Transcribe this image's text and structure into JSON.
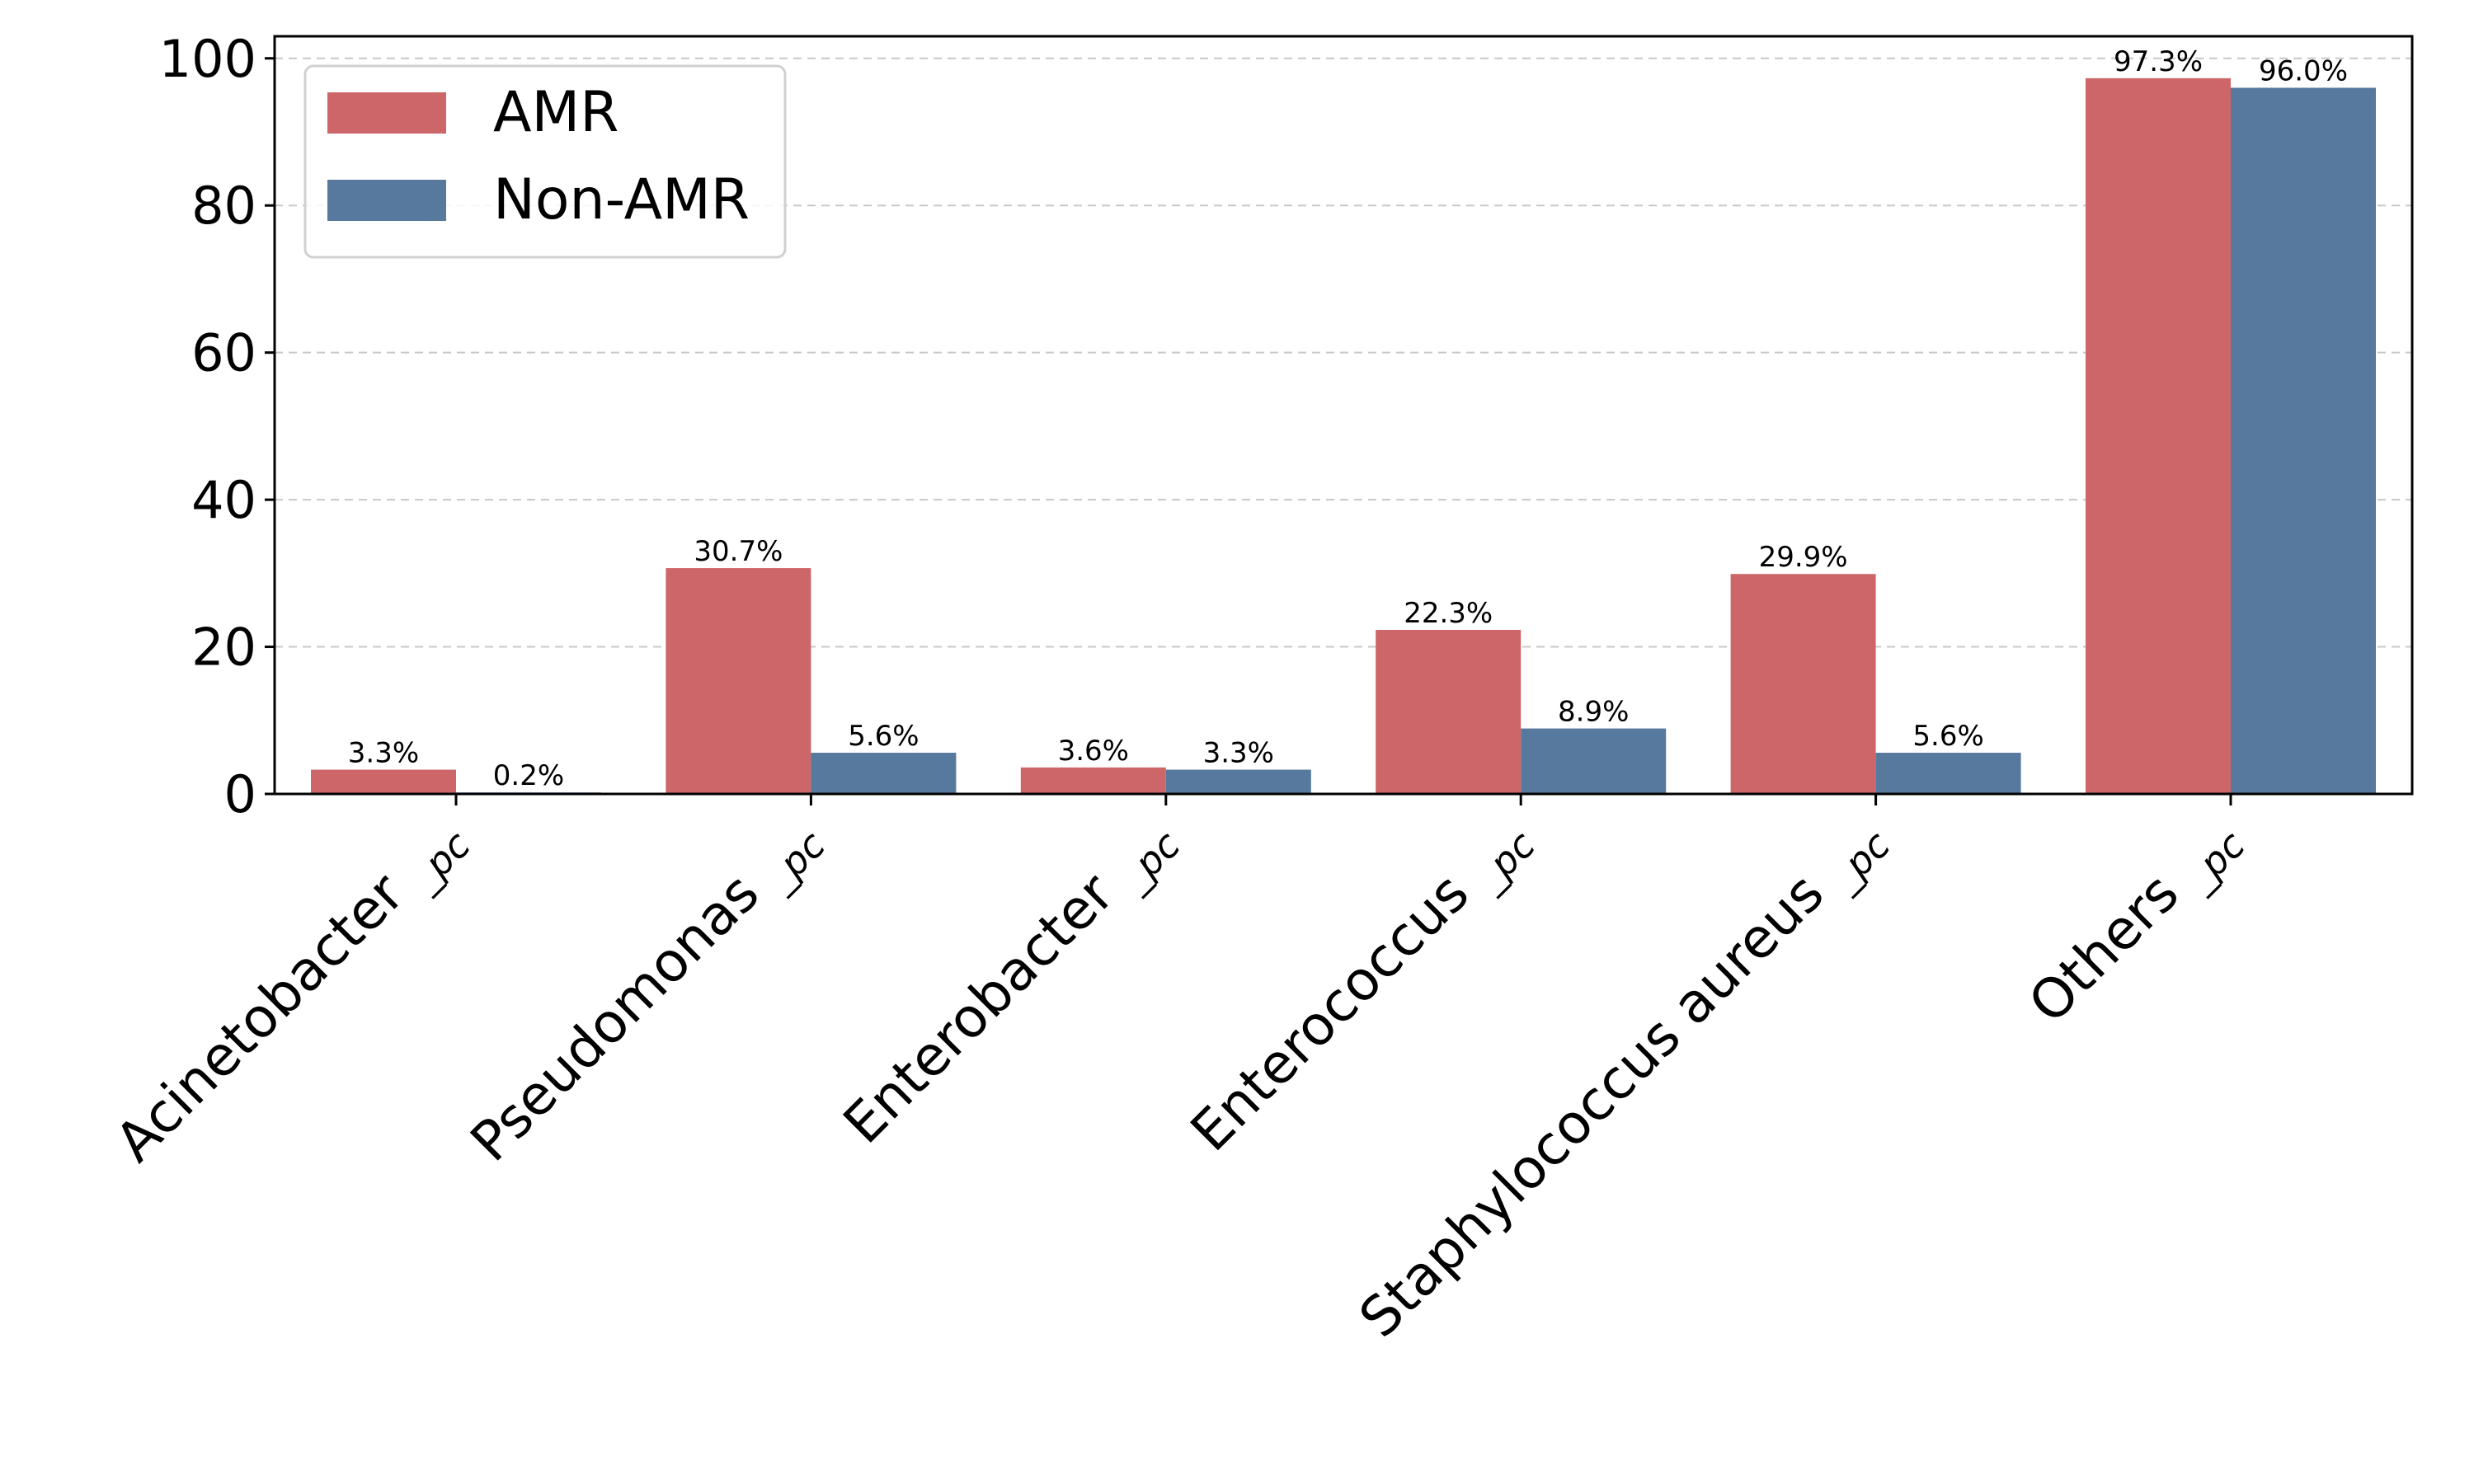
{
  "chart_data": {
    "type": "bar",
    "title": "",
    "xlabel": "",
    "ylabel": "",
    "ylim": [
      0,
      103
    ],
    "yticks": [
      0,
      20,
      40,
      60,
      80,
      100
    ],
    "grid": "y-dashed",
    "legend_position": "top-left",
    "categories": [
      {
        "name": "Acinetobacter",
        "suffix": "pc"
      },
      {
        "name": "Pseudomonas",
        "suffix": "pc"
      },
      {
        "name": "Enterobacter",
        "suffix": "pc"
      },
      {
        "name": "Enterococcus",
        "suffix": "pc"
      },
      {
        "name": "Staphylococcus aureus",
        "suffix": "pc"
      },
      {
        "name": "Others",
        "suffix": "pc"
      }
    ],
    "series": [
      {
        "name": "AMR",
        "color": "#cd6668",
        "values": [
          3.3,
          30.7,
          3.6,
          22.3,
          29.9,
          97.3
        ],
        "labels": [
          "3.3%",
          "30.7%",
          "3.6%",
          "22.3%",
          "29.9%",
          "97.3%"
        ]
      },
      {
        "name": "Non-AMR",
        "color": "#58799e",
        "values": [
          0.2,
          5.6,
          3.3,
          8.9,
          5.6,
          96.0
        ],
        "labels": [
          "0.2%",
          "5.6%",
          "3.3%",
          "8.9%",
          "5.6%",
          "96.0%"
        ]
      }
    ]
  }
}
